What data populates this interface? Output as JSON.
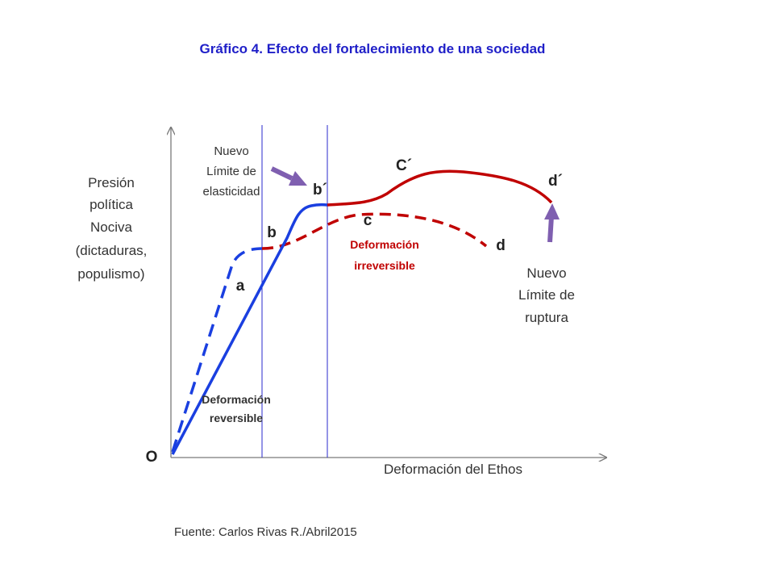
{
  "title": "Gráfico 4. Efecto del fortalecimiento de una sociedad",
  "y_axis_label": [
    "Presión",
    "política",
    "Nociva",
    "(dictaduras,",
    "populismo)"
  ],
  "x_axis_label": "Deformación del Ethos",
  "origin_label": "O",
  "point_labels": {
    "a": "a",
    "b": "b",
    "b_prime": "b´",
    "c": "c",
    "c_prime": "C´",
    "d": "d",
    "d_prime": "d´"
  },
  "annotations": {
    "new_elastic_limit": [
      "Nuevo",
      "Límite de",
      "elasticidad"
    ],
    "new_rupture_limit": [
      "Nuevo",
      "Límite de",
      "ruptura"
    ],
    "reversible": [
      "Deformación",
      "reversible"
    ],
    "irreversible": [
      "Deformación",
      "irreversible"
    ]
  },
  "source": "Fuente: Carlos Rivas R./Abril2015",
  "colors": {
    "title": "#1f1fc8",
    "blue_curve": "#1a3fe0",
    "dashed_blue": "#1a3fe0",
    "red_curve": "#c00000",
    "red_text": "#c00000",
    "vline": "#2a2acc",
    "axis": "#7a7a7a",
    "arrow": "#7f5fb0",
    "text": "#333333"
  }
}
